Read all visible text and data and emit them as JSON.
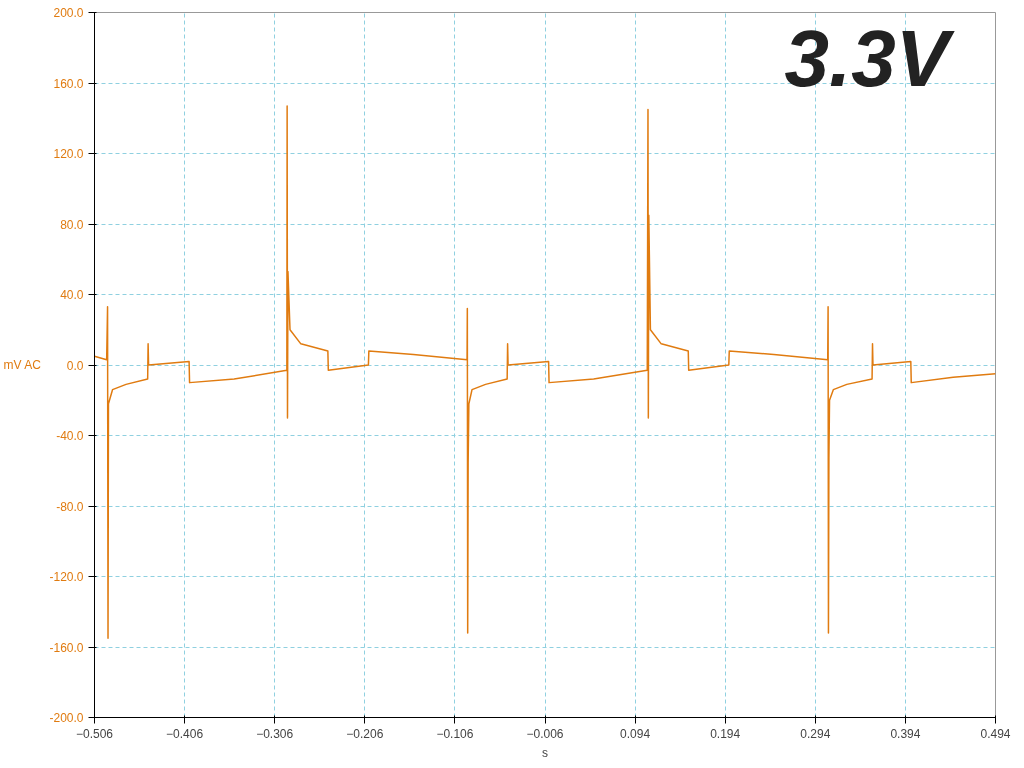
{
  "chart_data": {
    "type": "line",
    "xlabel": "s",
    "ylabel": "mV AC",
    "annotations": [
      "3.3V"
    ],
    "x": [
      -0.506,
      -0.4925,
      -0.4915,
      -0.491,
      -0.4905,
      -0.486,
      -0.471,
      -0.447,
      -0.4465,
      -0.446,
      -0.401,
      -0.4005,
      -0.351,
      -0.2925,
      -0.2922,
      -0.2918,
      -0.2913,
      -0.289,
      -0.277,
      -0.247,
      -0.2465,
      -0.202,
      -0.2015,
      -0.152,
      -0.0925,
      -0.0922,
      -0.0918,
      -0.0913,
      -0.0905,
      -0.087,
      -0.072,
      -0.048,
      -0.0475,
      -0.047,
      -0.002,
      -0.0015,
      0.048,
      0.1075,
      0.1083,
      0.1087,
      0.1092,
      0.111,
      0.123,
      0.153,
      0.1535,
      0.198,
      0.1985,
      0.248,
      0.3078,
      0.3082,
      0.3086,
      0.3091,
      0.3098,
      0.314,
      0.329,
      0.357,
      0.3575,
      0.358,
      0.4,
      0.4005,
      0.447,
      0.494
    ],
    "series": [
      {
        "color": "#e07b10",
        "values": [
          5,
          3,
          33,
          -155,
          -22,
          -14,
          -11,
          -8,
          12,
          0,
          2,
          -10,
          -8,
          -3,
          147,
          -30,
          53,
          20,
          12,
          8,
          -3,
          0,
          8,
          6,
          3,
          32,
          -152,
          -55,
          -22,
          -14,
          -11,
          -8,
          12,
          0,
          2,
          -10,
          -8,
          -3,
          145,
          -30,
          85,
          20,
          12,
          8,
          -3,
          0,
          8,
          6,
          3,
          33,
          -152,
          -53,
          -20,
          -14,
          -11,
          -8,
          12,
          0,
          2,
          -10,
          -7,
          -5
        ]
      }
    ],
    "xlim": [
      -0.506,
      0.494
    ],
    "xticks": [
      -0.506,
      -0.406,
      -0.306,
      -0.206,
      -0.106,
      -0.006,
      0.094,
      0.194,
      0.294,
      0.394,
      0.494
    ],
    "ylim": [
      -200,
      200
    ],
    "yticks": [
      {
        "value": -200,
        "label": "-200.0"
      },
      {
        "value": -160,
        "label": "-160.0"
      },
      {
        "value": -120,
        "label": "-120.0"
      },
      {
        "value": -80,
        "label": "-80.0"
      },
      {
        "value": -40,
        "label": "-40.0"
      },
      {
        "value": 0,
        "label": "0.0"
      },
      {
        "value": 40,
        "label": "40.0"
      },
      {
        "value": 80,
        "label": "80.0"
      },
      {
        "value": 120,
        "label": "120.0"
      },
      {
        "value": 160,
        "label": "160.0"
      },
      {
        "value": 200,
        "label": "200.0"
      }
    ],
    "grid": true,
    "marker": "none",
    "line_style": "solid"
  }
}
